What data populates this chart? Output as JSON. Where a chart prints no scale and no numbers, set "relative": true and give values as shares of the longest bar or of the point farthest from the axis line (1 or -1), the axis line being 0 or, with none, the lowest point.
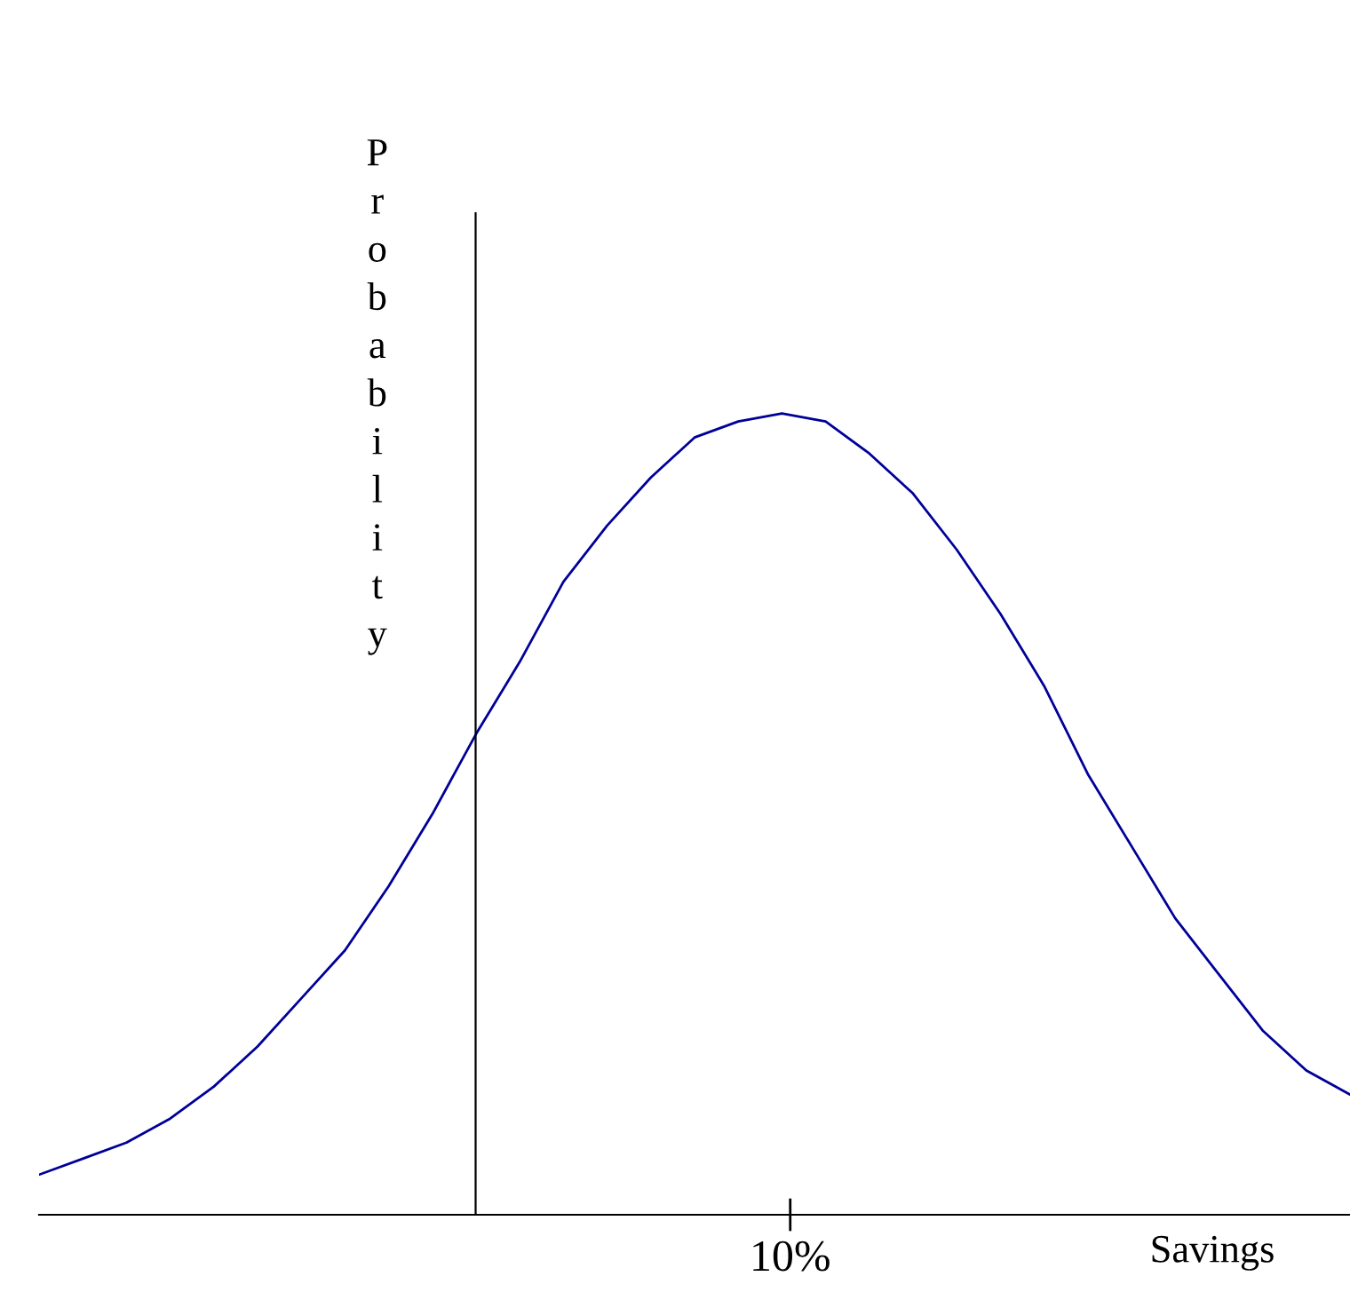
{
  "chart_data": {
    "type": "line",
    "relative": true,
    "xlabel": "Savings",
    "ylabel": "Probability",
    "categories": [
      null,
      null,
      null,
      null,
      null,
      null,
      null,
      null,
      null,
      null,
      null,
      null,
      null,
      null,
      null,
      null,
      null,
      null,
      null,
      null,
      null,
      null,
      null,
      null,
      null,
      null,
      null,
      null,
      null,
      null,
      null
    ],
    "series": [
      {
        "color": "#000099",
        "values": [
          0.05,
          0.07,
          0.09,
          0.12,
          0.16,
          0.21,
          0.27,
          0.33,
          0.41,
          0.5,
          0.6,
          0.69,
          0.79,
          0.86,
          0.92,
          0.97,
          0.99,
          1.0,
          0.99,
          0.95,
          0.9,
          0.83,
          0.75,
          0.66,
          0.55,
          0.46,
          0.37,
          0.3,
          0.23,
          0.18,
          0.15
        ]
      }
    ],
    "annotations": [
      "10%"
    ],
    "legend": false,
    "marker": "none",
    "line_style": "solid"
  }
}
